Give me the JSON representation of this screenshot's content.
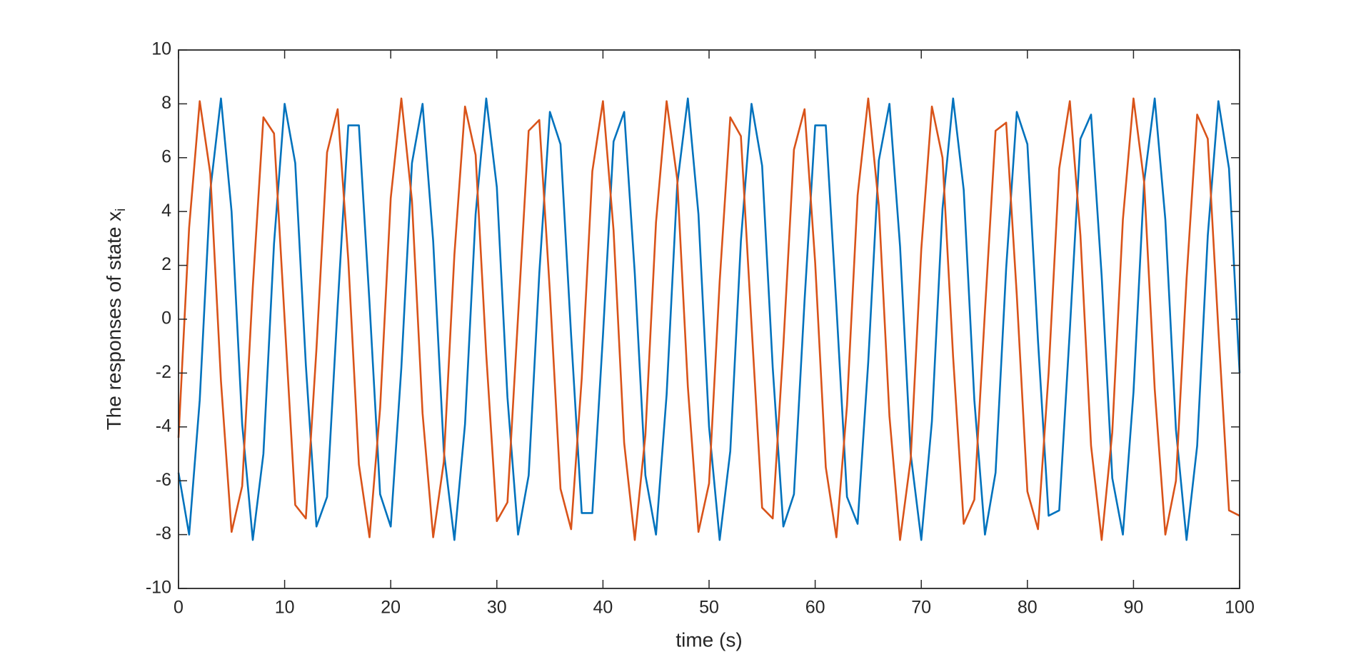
{
  "chart_data": {
    "type": "line",
    "xlabel": "time (s)",
    "ylabel": "The responses of state x",
    "ylabel_subscript": "i",
    "xlim": [
      0,
      100
    ],
    "xticks": [
      0,
      10,
      20,
      30,
      40,
      50,
      60,
      70,
      80,
      90,
      100
    ],
    "ylim": [
      -10,
      10
    ],
    "yticks": [
      -10,
      -8,
      -6,
      -4,
      -2,
      0,
      2,
      4,
      6,
      8,
      10
    ],
    "grid": false,
    "box": true,
    "x": [
      0,
      1,
      2,
      3,
      4,
      5,
      6,
      7,
      8,
      9,
      10,
      11,
      12,
      13,
      14,
      15,
      16,
      17,
      18,
      19,
      20,
      21,
      22,
      23,
      24,
      25,
      26,
      27,
      28,
      29,
      30,
      31,
      32,
      33,
      34,
      35,
      36,
      37,
      38,
      39,
      40,
      41,
      42,
      43,
      44,
      45,
      46,
      47,
      48,
      49,
      50,
      51,
      52,
      53,
      54,
      55,
      56,
      57,
      58,
      59,
      60,
      61,
      62,
      63,
      64,
      65,
      66,
      67,
      68,
      69,
      70,
      71,
      72,
      73,
      74,
      75,
      76,
      77,
      78,
      79,
      80,
      81,
      82,
      83,
      84,
      85,
      86,
      87,
      88,
      89,
      90,
      91,
      92,
      93,
      94,
      95,
      96,
      97,
      98,
      99,
      100
    ],
    "series": [
      {
        "color": "#0072bd",
        "values": [
          -5.7,
          -8.0,
          -3.0,
          4.8,
          8.2,
          4.0,
          -3.9,
          -8.2,
          -5.0,
          2.8,
          8.0,
          5.8,
          -1.7,
          -7.7,
          -6.6,
          0.5,
          7.2,
          7.2,
          0.6,
          -6.5,
          -7.7,
          -1.8,
          5.8,
          8.0,
          2.9,
          -4.9,
          -8.2,
          -3.9,
          3.9,
          8.2,
          4.9,
          -2.9,
          -8.0,
          -5.8,
          1.7,
          7.7,
          6.5,
          -0.6,
          -7.2,
          -7.2,
          -0.6,
          6.6,
          7.7,
          1.7,
          -5.8,
          -8.0,
          -2.8,
          5.0,
          8.2,
          3.9,
          -4.0,
          -8.2,
          -4.9,
          2.9,
          8.0,
          5.7,
          -1.8,
          -7.7,
          -6.5,
          0.7,
          7.2,
          7.2,
          0.5,
          -6.6,
          -7.6,
          -1.6,
          5.9,
          8.0,
          2.7,
          -5.0,
          -8.2,
          -3.8,
          4.1,
          8.2,
          4.8,
          -3.0,
          -8.0,
          -5.7,
          1.9,
          7.7,
          6.5,
          -0.8,
          -7.3,
          -7.1,
          -0.4,
          6.7,
          7.6,
          1.6,
          -5.9,
          -8.0,
          -2.7,
          5.1,
          8.2,
          3.7,
          -4.1,
          -8.2,
          -4.7,
          3.1,
          8.1,
          5.6,
          -2.0
        ]
      },
      {
        "color": "#d95319",
        "values": [
          -4.4,
          3.4,
          8.1,
          5.4,
          -2.3,
          -7.9,
          -6.2,
          1.2,
          7.5,
          6.9,
          0,
          -6.9,
          -7.4,
          -1.1,
          6.2,
          7.8,
          2.2,
          -5.4,
          -8.1,
          -3.3,
          4.5,
          8.2,
          4.4,
          -3.5,
          -8.1,
          -5.3,
          2.4,
          7.9,
          6.1,
          -1.3,
          -7.5,
          -6.8,
          0.1,
          7.0,
          7.4,
          1.0,
          -6.3,
          -7.8,
          -2.2,
          5.5,
          8.1,
          3.3,
          -4.6,
          -8.2,
          -4.3,
          3.6,
          8.1,
          5.2,
          -2.5,
          -7.9,
          -6.1,
          1.4,
          7.5,
          6.8,
          -0.2,
          -7.0,
          -7.4,
          -1.0,
          6.3,
          7.8,
          2.1,
          -5.5,
          -8.1,
          -3.2,
          4.6,
          8.2,
          4.2,
          -3.6,
          -8.2,
          -5.2,
          2.6,
          7.9,
          6.0,
          -1.4,
          -7.6,
          -6.7,
          0.3,
          7.0,
          7.3,
          0.9,
          -6.4,
          -7.8,
          -2.0,
          5.6,
          8.1,
          3.1,
          -4.7,
          -8.2,
          -4.2,
          3.7,
          8.2,
          5.1,
          -2.6,
          -8.0,
          -6.0,
          1.5,
          7.6,
          6.7,
          -0.4,
          -7.1,
          -7.3
        ]
      }
    ]
  }
}
